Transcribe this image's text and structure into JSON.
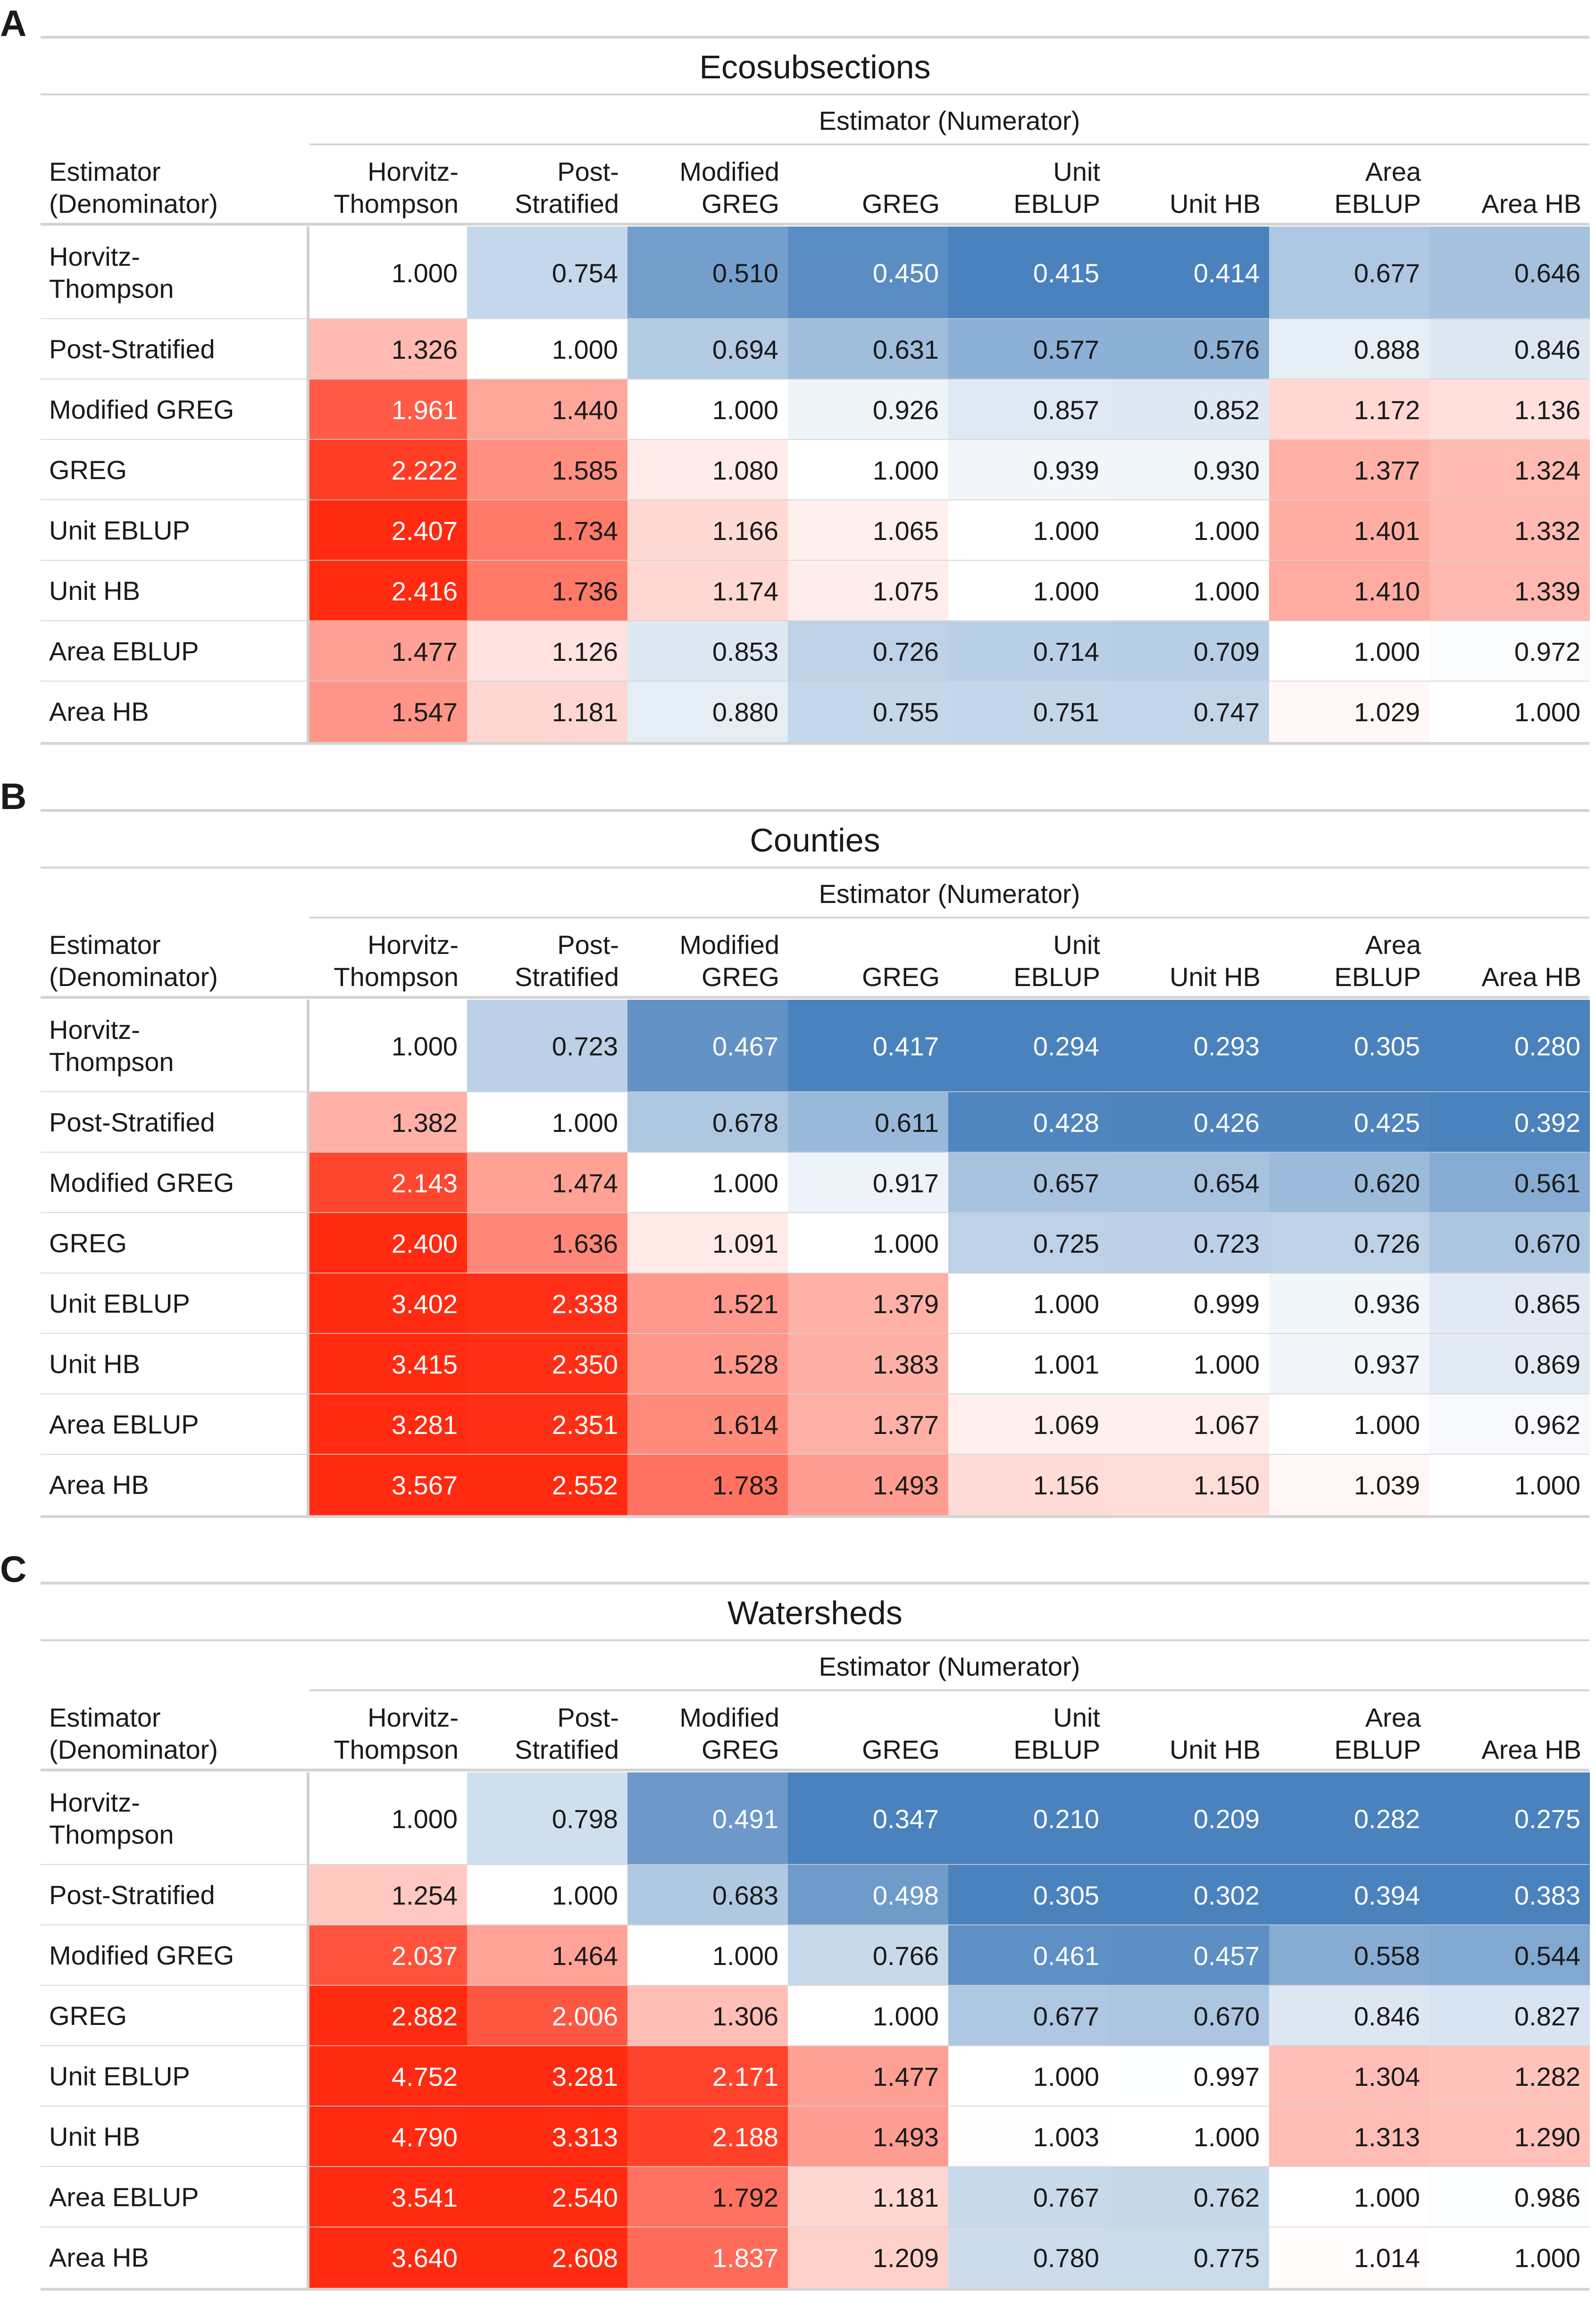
{
  "columns": [
    "Horvitz-\nThompson",
    "Post-\nStratified",
    "Modified\nGREG",
    "GREG",
    "Unit\nEBLUP",
    "Unit HB",
    "Area\nEBLUP",
    "Area HB"
  ],
  "rows": [
    "Horvitz-\nThompson",
    "Post-Stratified",
    "Modified GREG",
    "GREG",
    "Unit EBLUP",
    "Unit HB",
    "Area EBLUP",
    "Area HB"
  ],
  "spanner": "Estimator (Numerator)",
  "stub_header": "Estimator\n(Denominator)",
  "colors": {
    "low": "#4a82bd",
    "mid": "#ffffff",
    "high": "#ff2a10"
  },
  "chart_data": [
    {
      "type": "table",
      "letter": "A",
      "title": "Ecosubsections",
      "values": [
        [
          "1.000",
          "0.754",
          "0.510",
          "0.450",
          "0.415",
          "0.414",
          "0.677",
          "0.646"
        ],
        [
          "1.326",
          "1.000",
          "0.694",
          "0.631",
          "0.577",
          "0.576",
          "0.888",
          "0.846"
        ],
        [
          "1.961",
          "1.440",
          "1.000",
          "0.926",
          "0.857",
          "0.852",
          "1.172",
          "1.136"
        ],
        [
          "2.222",
          "1.585",
          "1.080",
          "1.000",
          "0.939",
          "0.930",
          "1.377",
          "1.324"
        ],
        [
          "2.407",
          "1.734",
          "1.166",
          "1.065",
          "1.000",
          "1.000",
          "1.401",
          "1.332"
        ],
        [
          "2.416",
          "1.736",
          "1.174",
          "1.075",
          "1.000",
          "1.000",
          "1.410",
          "1.339"
        ],
        [
          "1.477",
          "1.126",
          "0.853",
          "0.726",
          "0.714",
          "0.709",
          "1.000",
          "0.972"
        ],
        [
          "1.547",
          "1.181",
          "0.880",
          "0.755",
          "0.751",
          "0.747",
          "1.029",
          "1.000"
        ]
      ]
    },
    {
      "type": "table",
      "letter": "B",
      "title": "Counties",
      "values": [
        [
          "1.000",
          "0.723",
          "0.467",
          "0.417",
          "0.294",
          "0.293",
          "0.305",
          "0.280"
        ],
        [
          "1.382",
          "1.000",
          "0.678",
          "0.611",
          "0.428",
          "0.426",
          "0.425",
          "0.392"
        ],
        [
          "2.143",
          "1.474",
          "1.000",
          "0.917",
          "0.657",
          "0.654",
          "0.620",
          "0.561"
        ],
        [
          "2.400",
          "1.636",
          "1.091",
          "1.000",
          "0.725",
          "0.723",
          "0.726",
          "0.670"
        ],
        [
          "3.402",
          "2.338",
          "1.521",
          "1.379",
          "1.000",
          "0.999",
          "0.936",
          "0.865"
        ],
        [
          "3.415",
          "2.350",
          "1.528",
          "1.383",
          "1.001",
          "1.000",
          "0.937",
          "0.869"
        ],
        [
          "3.281",
          "2.351",
          "1.614",
          "1.377",
          "1.069",
          "1.067",
          "1.000",
          "0.962"
        ],
        [
          "3.567",
          "2.552",
          "1.783",
          "1.493",
          "1.156",
          "1.150",
          "1.039",
          "1.000"
        ]
      ]
    },
    {
      "type": "table",
      "letter": "C",
      "title": "Watersheds",
      "values": [
        [
          "1.000",
          "0.798",
          "0.491",
          "0.347",
          "0.210",
          "0.209",
          "0.282",
          "0.275"
        ],
        [
          "1.254",
          "1.000",
          "0.683",
          "0.498",
          "0.305",
          "0.302",
          "0.394",
          "0.383"
        ],
        [
          "2.037",
          "1.464",
          "1.000",
          "0.766",
          "0.461",
          "0.457",
          "0.558",
          "0.544"
        ],
        [
          "2.882",
          "2.006",
          "1.306",
          "1.000",
          "0.677",
          "0.670",
          "0.846",
          "0.827"
        ],
        [
          "4.752",
          "3.281",
          "2.171",
          "1.477",
          "1.000",
          "0.997",
          "1.304",
          "1.282"
        ],
        [
          "4.790",
          "3.313",
          "2.188",
          "1.493",
          "1.003",
          "1.000",
          "1.313",
          "1.290"
        ],
        [
          "3.541",
          "2.540",
          "1.792",
          "1.181",
          "0.767",
          "0.762",
          "1.000",
          "0.986"
        ],
        [
          "3.640",
          "2.608",
          "1.837",
          "1.209",
          "0.780",
          "0.775",
          "1.014",
          "1.000"
        ]
      ]
    }
  ]
}
